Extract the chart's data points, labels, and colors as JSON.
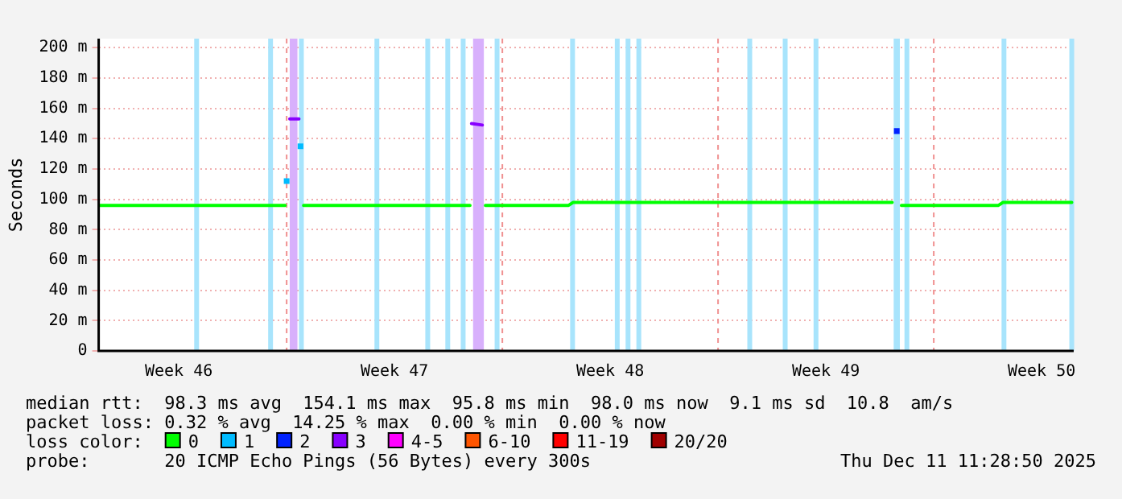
{
  "chart_data": {
    "type": "line",
    "ylabel": "Seconds",
    "legend_title": "loss color:",
    "legend": "bottom",
    "grid": "y",
    "marker": "none",
    "line_style": "solid",
    "x": [
      "2025-11-09T22:00",
      "2025-11-13T00:00",
      "2025-11-15T22:48",
      "2025-11-16T00:00",
      "2025-11-16T01:48",
      "2025-11-16T02:24",
      "2025-11-16T09:36",
      "2025-11-16T10:48",
      "2025-11-16T12:00",
      "2025-11-16T13:12",
      "2025-11-20T10:48",
      "2025-11-21T22:48",
      "2025-11-22T00:00",
      "2025-11-22T08:24",
      "2025-11-22T10:48",
      "2025-11-25T03:36",
      "2025-11-25T07:12",
      "2025-12-05T15:36",
      "2025-12-05T16:48",
      "2025-12-05T19:12",
      "2025-12-05T21:36",
      "2025-12-05T22:48",
      "2025-12-09T02:24",
      "2025-12-09T06:00",
      "2025-12-11T11:28"
    ],
    "series": [
      {
        "name": "0",
        "color": "#00ff00",
        "values": [
          96,
          96,
          96,
          null,
          null,
          null,
          null,
          null,
          null,
          96,
          96,
          96,
          null,
          null,
          96,
          96,
          98,
          98,
          null,
          null,
          null,
          96,
          96,
          98,
          98
        ]
      },
      {
        "name": "1",
        "type": "scatter",
        "marker": "square",
        "color": "#00bbff",
        "values": [
          null,
          null,
          null,
          112,
          null,
          null,
          null,
          135,
          null,
          null,
          null,
          null,
          null,
          null,
          null,
          null,
          null,
          null,
          null,
          null,
          null,
          null,
          null,
          null,
          null
        ]
      },
      {
        "name": "2",
        "type": "scatter",
        "marker": "square",
        "color": "#0022ff",
        "values": [
          null,
          null,
          null,
          null,
          null,
          null,
          null,
          null,
          null,
          null,
          null,
          null,
          null,
          null,
          null,
          null,
          null,
          null,
          null,
          145,
          null,
          null,
          null,
          null,
          null
        ]
      },
      {
        "name": "3",
        "color": "#8800ff",
        "values": [
          null,
          null,
          null,
          null,
          null,
          153,
          153,
          null,
          null,
          null,
          null,
          null,
          150,
          149,
          null,
          null,
          null,
          null,
          null,
          null,
          null,
          null,
          null,
          null,
          null
        ]
      },
      {
        "name": "4-5",
        "color": "#ff00ff",
        "values": [
          null,
          null,
          null,
          null,
          null,
          null,
          null,
          null,
          null,
          null,
          null,
          null,
          null,
          null,
          null,
          null,
          null,
          null,
          null,
          null,
          null,
          null,
          null,
          null,
          null
        ]
      },
      {
        "name": "6-10",
        "color": "#ff5500",
        "values": [
          null,
          null,
          null,
          null,
          null,
          null,
          null,
          null,
          null,
          null,
          null,
          null,
          null,
          null,
          null,
          null,
          null,
          null,
          null,
          null,
          null,
          null,
          null,
          null,
          null
        ]
      },
      {
        "name": "11-19",
        "color": "#ff0000",
        "values": [
          null,
          null,
          null,
          null,
          null,
          null,
          null,
          null,
          null,
          null,
          null,
          null,
          null,
          null,
          null,
          null,
          null,
          null,
          null,
          null,
          null,
          null,
          null,
          null,
          null
        ]
      },
      {
        "name": "20/20",
        "color": "#a00000",
        "values": [
          null,
          null,
          null,
          null,
          null,
          null,
          null,
          null,
          null,
          null,
          null,
          null,
          null,
          null,
          null,
          null,
          null,
          null,
          null,
          null,
          null,
          null,
          null,
          null,
          null
        ]
      }
    ],
    "xlim": [
      "2025-11-09T21:36",
      "2025-12-11T13:00"
    ],
    "xticks": [
      {
        "value": "2025-11-12T12:00",
        "label": "Week 46"
      },
      {
        "value": "2025-11-19T12:00",
        "label": "Week 47"
      },
      {
        "value": "2025-11-26T12:00",
        "label": "Week 48"
      },
      {
        "value": "2025-12-03T12:00",
        "label": "Week 49"
      },
      {
        "value": "2025-12-10T12:00",
        "label": "Week 50"
      }
    ],
    "ylim": [
      0,
      206
    ],
    "yticks": [
      0,
      {
        "value": 20,
        "label": "20 m"
      },
      {
        "value": 40,
        "label": "40 m"
      },
      {
        "value": 60,
        "label": "60 m"
      },
      {
        "value": 80,
        "label": "80 m"
      },
      {
        "value": 100,
        "label": "100 m"
      },
      {
        "value": 120,
        "label": "120 m"
      },
      {
        "value": 140,
        "label": "140 m"
      },
      {
        "value": 160,
        "label": "160 m"
      },
      {
        "value": 180,
        "label": "180 m"
      },
      {
        "value": 200,
        "label": "200 m"
      }
    ],
    "bands": [
      {
        "axis": "x",
        "from": "2025-11-13T00:00",
        "to": "2025-11-13T01:48",
        "color": "#a8e4fc"
      },
      {
        "axis": "x",
        "from": "2025-11-15T09:36",
        "to": "2025-11-15T11:24",
        "color": "#a8e4fc"
      },
      {
        "axis": "x",
        "from": "2025-11-16T02:24",
        "to": "2025-11-16T08:24",
        "color": "#d8b0fc"
      },
      {
        "axis": "x",
        "from": "2025-11-16T09:36",
        "to": "2025-11-16T11:24",
        "color": "#a8e4fc"
      },
      {
        "axis": "x",
        "from": "2025-11-18T20:24",
        "to": "2025-11-18T22:12",
        "color": "#a8e4fc"
      },
      {
        "axis": "x",
        "from": "2025-11-20T12:00",
        "to": "2025-11-20T13:48",
        "color": "#a8e4fc"
      },
      {
        "axis": "x",
        "from": "2025-11-21T03:36",
        "to": "2025-11-21T05:24",
        "color": "#a8e4fc"
      },
      {
        "axis": "x",
        "from": "2025-11-21T15:36",
        "to": "2025-11-21T17:24",
        "color": "#a8e4fc"
      },
      {
        "axis": "x",
        "from": "2025-11-22T01:12",
        "to": "2025-11-22T09:36",
        "color": "#d8b0fc"
      },
      {
        "axis": "x",
        "from": "2025-11-22T18:00",
        "to": "2025-11-22T19:48",
        "color": "#a8e4fc"
      },
      {
        "axis": "x",
        "from": "2025-11-25T04:48",
        "to": "2025-11-25T07:00",
        "color": "#a8e4fc"
      },
      {
        "axis": "x",
        "from": "2025-11-26T15:36",
        "to": "2025-11-26T17:24",
        "color": "#a8e4fc"
      },
      {
        "axis": "x",
        "from": "2025-11-27T00:00",
        "to": "2025-11-27T01:48",
        "color": "#a8e4fc"
      },
      {
        "axis": "x",
        "from": "2025-11-27T08:24",
        "to": "2025-11-27T10:12",
        "color": "#a8e4fc"
      },
      {
        "axis": "x",
        "from": "2025-11-30T22:48",
        "to": "2025-12-01T00:36",
        "color": "#a8e4fc"
      },
      {
        "axis": "x",
        "from": "2025-12-02T02:24",
        "to": "2025-12-02T04:12",
        "color": "#a8e4fc"
      },
      {
        "axis": "x",
        "from": "2025-12-03T02:24",
        "to": "2025-12-03T04:12",
        "color": "#a8e4fc"
      },
      {
        "axis": "x",
        "from": "2025-12-05T16:48",
        "to": "2025-12-05T21:36",
        "color": "#a8e4fc"
      },
      {
        "axis": "x",
        "from": "2025-12-06T01:12",
        "to": "2025-12-06T03:00",
        "color": "#a8e4fc"
      },
      {
        "axis": "x",
        "from": "2025-12-09T04:48",
        "to": "2025-12-09T06:36",
        "color": "#a8e4fc"
      },
      {
        "axis": "x",
        "from": "2025-12-11T09:36",
        "to": "2025-12-11T11:24",
        "color": "#a8e4fc"
      }
    ],
    "ref_lines": [
      {
        "axis": "x",
        "value": "2025-11-16T00:00",
        "color": "#f09090",
        "line_style": "dashed"
      },
      {
        "axis": "x",
        "value": "2025-11-23T00:00",
        "color": "#f09090",
        "line_style": "dashed"
      },
      {
        "axis": "x",
        "value": "2025-11-30T00:00",
        "color": "#f09090",
        "line_style": "dashed"
      },
      {
        "axis": "x",
        "value": "2025-12-07T00:00",
        "color": "#f09090",
        "line_style": "dashed"
      }
    ],
    "annotations": [
      "median rtt:  98.3 ms avg  154.1 ms max  95.8 ms min  98.0 ms now  9.1 ms sd  10.8  am/s",
      "packet loss: 0.32 % avg  14.25 % max  0.00 % min  0.00 % now",
      "probe:       20 ICMP Echo Pings (56 Bytes) every 300s",
      "Thu Dec 11 11:28:50 2025"
    ]
  }
}
